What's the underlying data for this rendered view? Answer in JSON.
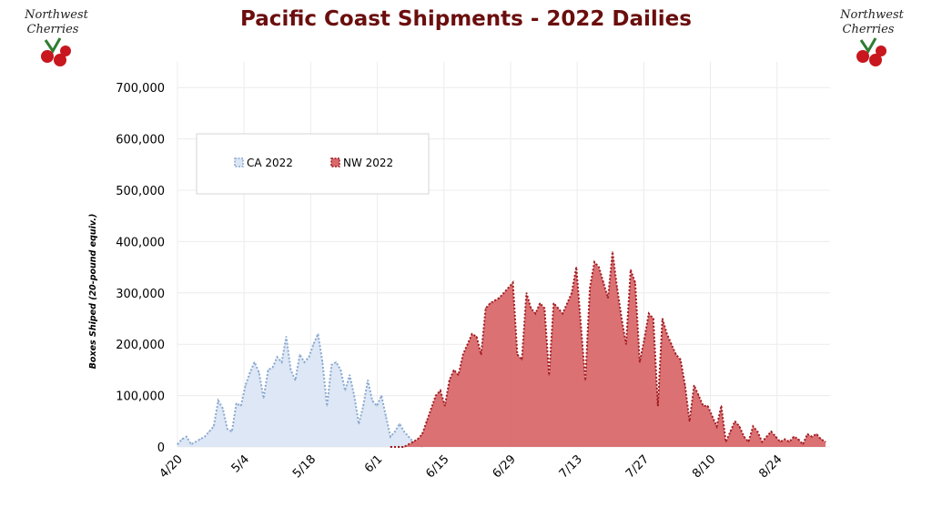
{
  "logo_text": [
    "Northwest",
    "Cherries"
  ],
  "chart_data": {
    "type": "area",
    "title": "Pacific Coast Shipments - 2022 Dailies",
    "ylabel": "Boxes Shiped (20-pound equiv.)",
    "xlabel": "",
    "ylim": [
      0,
      750000
    ],
    "yticks": [
      0,
      100000,
      200000,
      300000,
      400000,
      500000,
      600000,
      700000
    ],
    "ytick_labels": [
      "0",
      "100,000",
      "200,000",
      "300,000",
      "400,000",
      "500,000",
      "600,000",
      "700,000"
    ],
    "xtick_labels": [
      "4/20",
      "5/4",
      "5/18",
      "6/1",
      "6/15",
      "6/29",
      "7/13",
      "7/27",
      "8/10",
      "8/24"
    ],
    "x_start": "4/20",
    "grid": true,
    "legend_position": "top-left",
    "series": [
      {
        "name": "CA 2022",
        "color": "#dbe6f4",
        "line_color": "#8aa9d0",
        "start_day": 0,
        "values": [
          5000,
          15000,
          20000,
          5000,
          10000,
          15000,
          20000,
          30000,
          40000,
          90000,
          75000,
          35000,
          30000,
          85000,
          80000,
          120000,
          145000,
          165000,
          145000,
          95000,
          150000,
          155000,
          175000,
          165000,
          215000,
          150000,
          130000,
          180000,
          165000,
          175000,
          200000,
          220000,
          165000,
          80000,
          160000,
          165000,
          150000,
          110000,
          140000,
          100000,
          45000,
          80000,
          130000,
          90000,
          80000,
          100000,
          60000,
          20000,
          30000,
          45000,
          30000,
          20000,
          10000,
          5000,
          0
        ]
      },
      {
        "name": "NW 2022",
        "color": "#d9696b",
        "line_color": "#a01d22",
        "start_day": 47,
        "values": [
          0,
          0,
          0,
          0,
          5000,
          10000,
          15000,
          25000,
          50000,
          75000,
          100000,
          110000,
          80000,
          130000,
          150000,
          140000,
          180000,
          200000,
          220000,
          215000,
          180000,
          270000,
          280000,
          285000,
          290000,
          300000,
          310000,
          320000,
          180000,
          170000,
          300000,
          270000,
          260000,
          280000,
          270000,
          140000,
          280000,
          270000,
          260000,
          280000,
          300000,
          350000,
          240000,
          130000,
          310000,
          360000,
          350000,
          320000,
          290000,
          380000,
          310000,
          250000,
          200000,
          345000,
          320000,
          165000,
          210000,
          260000,
          250000,
          80000,
          250000,
          220000,
          200000,
          180000,
          170000,
          120000,
          50000,
          120000,
          100000,
          80000,
          80000,
          60000,
          40000,
          80000,
          10000,
          30000,
          50000,
          40000,
          20000,
          10000,
          40000,
          30000,
          10000,
          20000,
          30000,
          20000,
          10000,
          15000,
          10000,
          20000,
          15000,
          5000,
          25000,
          20000,
          25000,
          15000,
          10000
        ]
      }
    ]
  }
}
